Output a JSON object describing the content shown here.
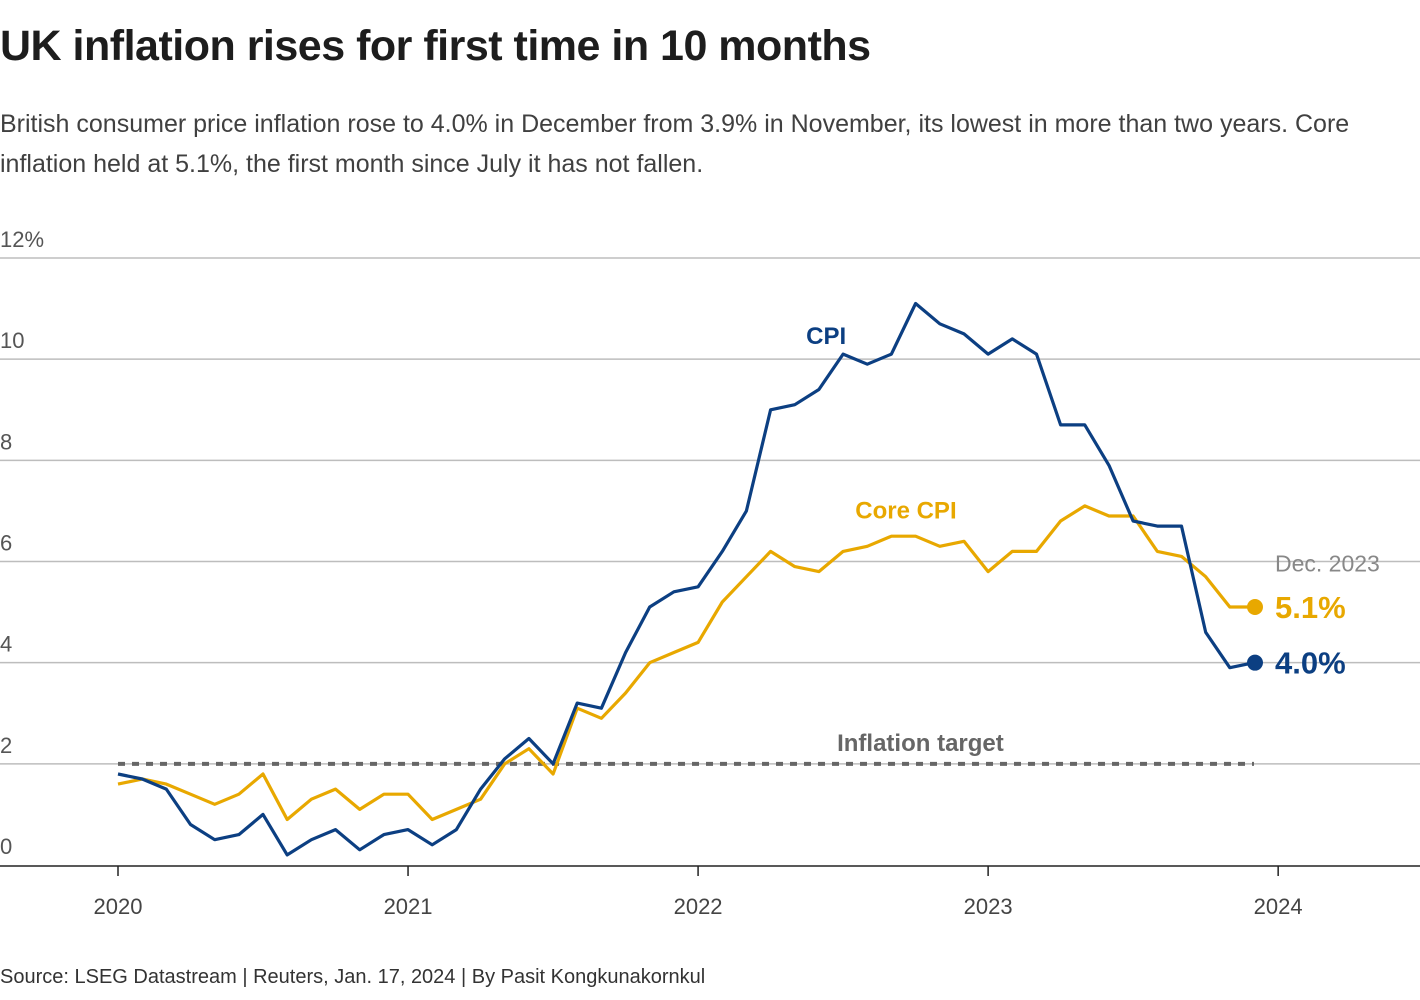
{
  "header": {
    "title": "UK inflation rises for first time in 10 months",
    "subtitle": "British consumer price inflation rose to 4.0% in December from 3.9% in November, its lowest in more than two years. Core inflation held at 5.1%, the first month since July it has not fallen."
  },
  "footer": {
    "source": "Source: LSEG Datastream | Reuters, Jan. 17, 2024 | By Pasit Kongkunakornkul"
  },
  "chart_data": {
    "type": "line",
    "title": "UK inflation rises for first time in 10 months",
    "xlabel": "",
    "ylabel": "",
    "ylim": [
      0,
      12
    ],
    "y_ticks": [
      0,
      2,
      4,
      6,
      8,
      10,
      12
    ],
    "y_tick_labels": [
      "0",
      "2",
      "4",
      "6",
      "8",
      "10",
      "12%"
    ],
    "x_tick_labels": [
      "2020",
      "2021",
      "2022",
      "2023",
      "2024"
    ],
    "grid": true,
    "start": "2020-01",
    "series": [
      {
        "name": "CPI",
        "color": "#0c3f82",
        "values": [
          1.8,
          1.7,
          1.5,
          0.8,
          0.5,
          0.6,
          1.0,
          0.2,
          0.5,
          0.7,
          0.3,
          0.6,
          0.7,
          0.4,
          0.7,
          1.5,
          2.1,
          2.5,
          2.0,
          3.2,
          3.1,
          4.2,
          5.1,
          5.4,
          5.5,
          6.2,
          7.0,
          9.0,
          9.1,
          9.4,
          10.1,
          9.9,
          10.1,
          11.1,
          10.7,
          10.5,
          10.1,
          10.4,
          10.1,
          8.7,
          8.7,
          7.9,
          6.8,
          6.7,
          6.7,
          4.6,
          3.9,
          4.0
        ]
      },
      {
        "name": "Core CPI",
        "color": "#e8a800",
        "values": [
          1.6,
          1.7,
          1.6,
          1.4,
          1.2,
          1.4,
          1.8,
          0.9,
          1.3,
          1.5,
          1.1,
          1.4,
          1.4,
          0.9,
          1.1,
          1.3,
          2.0,
          2.3,
          1.8,
          3.1,
          2.9,
          3.4,
          4.0,
          4.2,
          4.4,
          5.2,
          5.7,
          6.2,
          5.9,
          5.8,
          6.2,
          6.3,
          6.5,
          6.5,
          6.3,
          6.4,
          5.8,
          6.2,
          6.2,
          6.8,
          7.1,
          6.9,
          6.9,
          6.2,
          6.1,
          5.7,
          5.1,
          5.1
        ]
      }
    ],
    "reference_line": {
      "label": "Inflation target",
      "value": 2
    },
    "annotations": {
      "date_label": "Dec. 2023",
      "cpi_label": "CPI",
      "core_label": "Core CPI",
      "core_end_label": "5.1%",
      "cpi_end_label": "4.0%"
    }
  }
}
